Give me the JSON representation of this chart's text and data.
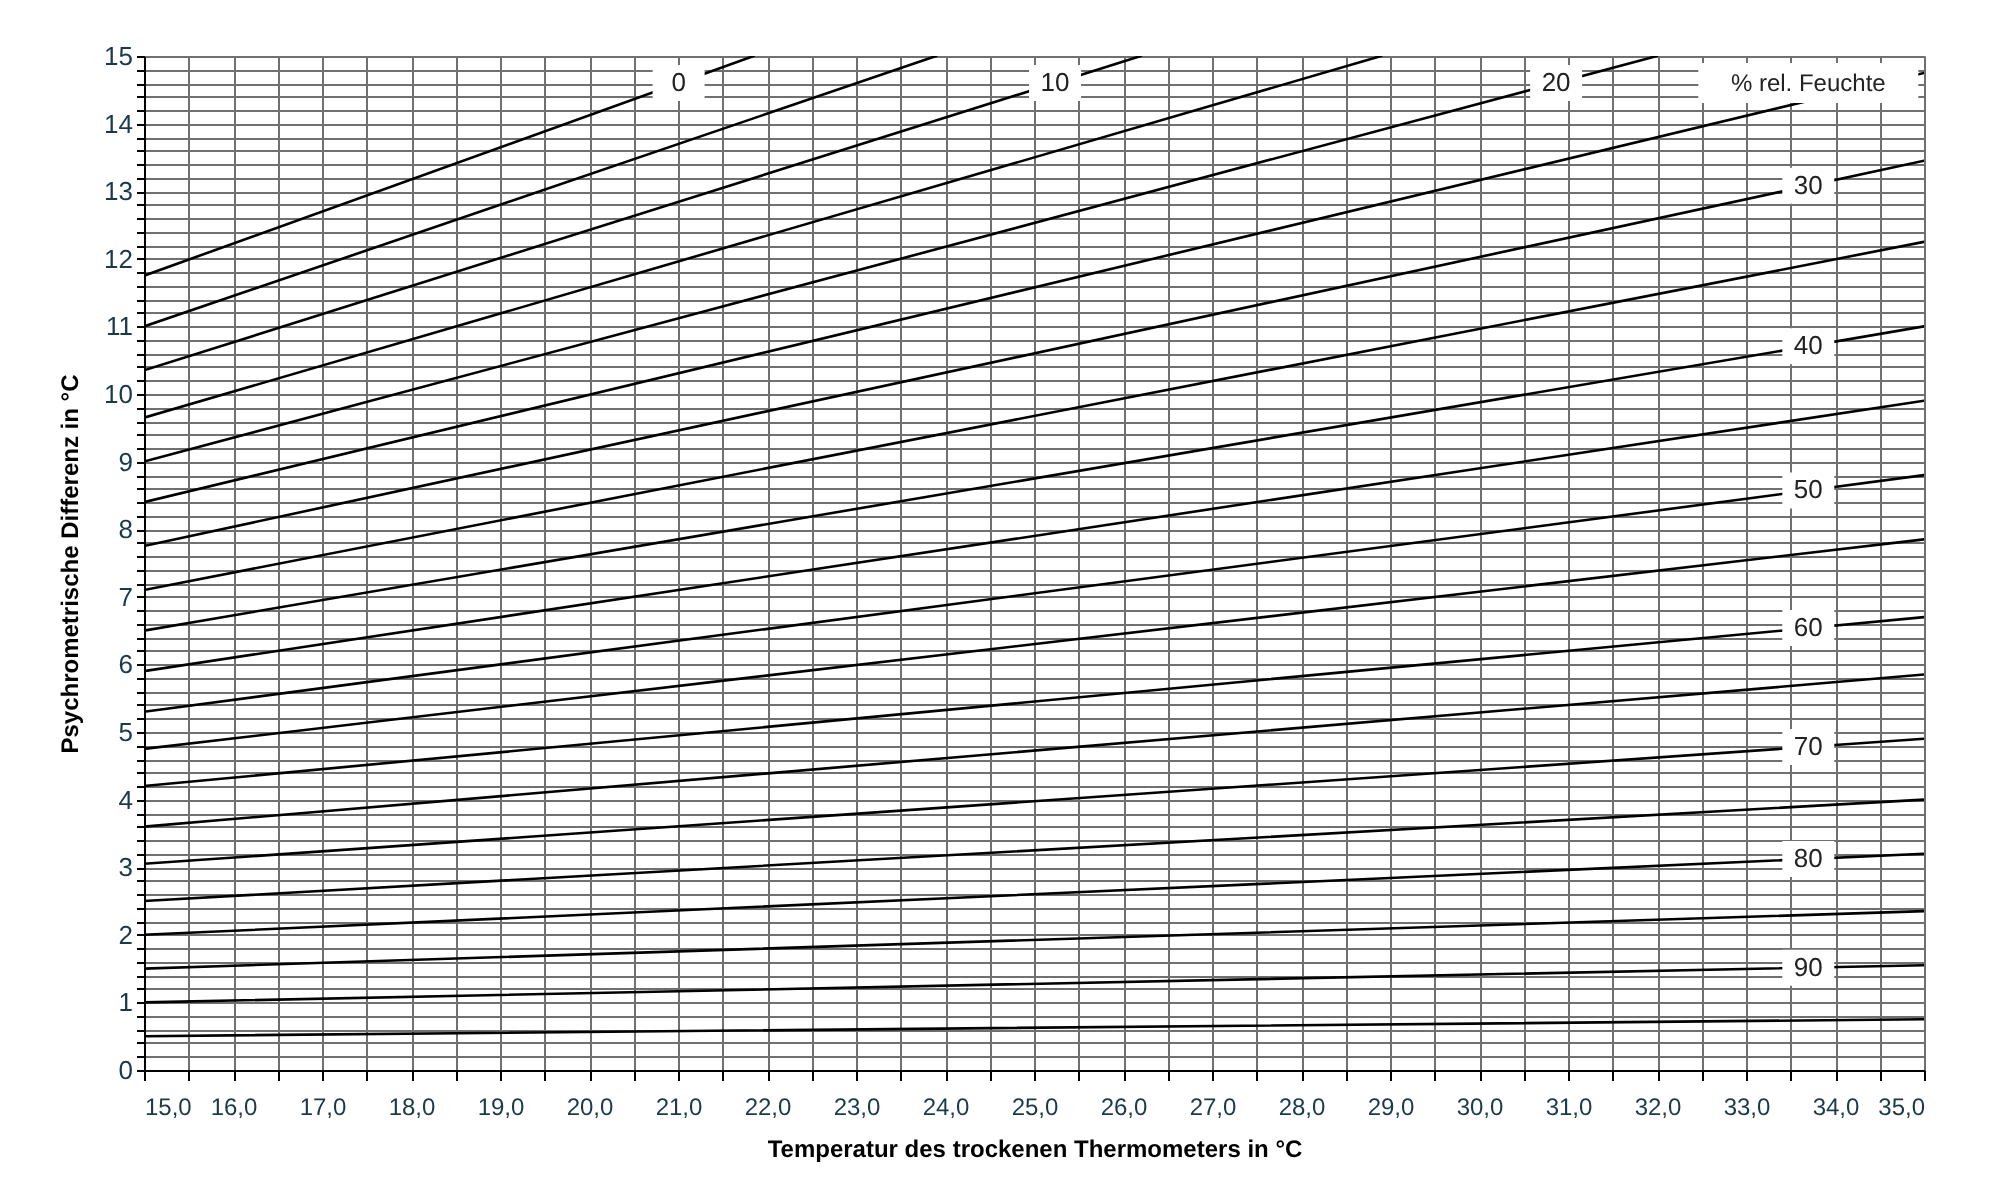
{
  "chart_data": {
    "type": "line",
    "xlabel": "Temperatur des trockenen Thermometers in °C",
    "ylabel": "Psychrometrische Differenz in °C",
    "annotations": [
      "% rel. Feuchte"
    ],
    "xlim": [
      15,
      35
    ],
    "ylim": [
      0,
      15
    ],
    "xticks": [
      {
        "value": 15,
        "label": "15,0"
      },
      {
        "value": 15.5,
        "label": null
      },
      {
        "value": 16,
        "label": "16,0"
      },
      {
        "value": 16.5,
        "label": null
      },
      {
        "value": 17,
        "label": "17,0"
      },
      {
        "value": 17.5,
        "label": null
      },
      {
        "value": 18,
        "label": "18,0"
      },
      {
        "value": 18.5,
        "label": null
      },
      {
        "value": 19,
        "label": "19,0"
      },
      {
        "value": 19.5,
        "label": null
      },
      {
        "value": 20,
        "label": "20,0"
      },
      {
        "value": 20.5,
        "label": null
      },
      {
        "value": 21,
        "label": "21,0"
      },
      {
        "value": 21.5,
        "label": null
      },
      {
        "value": 22,
        "label": "22,0"
      },
      {
        "value": 22.5,
        "label": null
      },
      {
        "value": 23,
        "label": "23,0"
      },
      {
        "value": 23.5,
        "label": null
      },
      {
        "value": 24,
        "label": "24,0"
      },
      {
        "value": 24.5,
        "label": null
      },
      {
        "value": 25,
        "label": "25,0"
      },
      {
        "value": 25.5,
        "label": null
      },
      {
        "value": 26,
        "label": "26,0"
      },
      {
        "value": 26.5,
        "label": null
      },
      {
        "value": 27,
        "label": "27,0"
      },
      {
        "value": 27.5,
        "label": null
      },
      {
        "value": 28,
        "label": "28,0"
      },
      {
        "value": 28.5,
        "label": null
      },
      {
        "value": 29,
        "label": "29,0"
      },
      {
        "value": 29.5,
        "label": null
      },
      {
        "value": 30,
        "label": "30,0"
      },
      {
        "value": 30.5,
        "label": null
      },
      {
        "value": 31,
        "label": "31,0"
      },
      {
        "value": 31.5,
        "label": null
      },
      {
        "value": 32,
        "label": "32,0"
      },
      {
        "value": 32.5,
        "label": null
      },
      {
        "value": 33,
        "label": "33,0"
      },
      {
        "value": 33.5,
        "label": null
      },
      {
        "value": 34,
        "label": "34,0"
      },
      {
        "value": 34.5,
        "label": null
      },
      {
        "value": 35,
        "label": "35,0"
      }
    ],
    "yticks": [
      0,
      {
        "value": 0.2,
        "label": null
      },
      {
        "value": 0.4,
        "label": null
      },
      {
        "value": 0.6,
        "label": null
      },
      {
        "value": 0.8,
        "label": null
      },
      1,
      {
        "value": 1.2,
        "label": null
      },
      {
        "value": 1.4,
        "label": null
      },
      {
        "value": 1.6,
        "label": null
      },
      {
        "value": 1.8,
        "label": null
      },
      2,
      {
        "value": 2.2,
        "label": null
      },
      {
        "value": 2.4,
        "label": null
      },
      {
        "value": 2.6,
        "label": null
      },
      {
        "value": 2.8,
        "label": null
      },
      3,
      {
        "value": 3.2,
        "label": null
      },
      {
        "value": 3.4,
        "label": null
      },
      {
        "value": 3.6,
        "label": null
      },
      {
        "value": 3.8,
        "label": null
      },
      4,
      {
        "value": 4.2,
        "label": null
      },
      {
        "value": 4.4,
        "label": null
      },
      {
        "value": 4.6,
        "label": null
      },
      {
        "value": 4.8,
        "label": null
      },
      5,
      {
        "value": 5.2,
        "label": null
      },
      {
        "value": 5.4,
        "label": null
      },
      {
        "value": 5.6,
        "label": null
      },
      {
        "value": 5.8,
        "label": null
      },
      6,
      {
        "value": 6.2,
        "label": null
      },
      {
        "value": 6.4,
        "label": null
      },
      {
        "value": 6.6,
        "label": null
      },
      {
        "value": 6.8,
        "label": null
      },
      7,
      {
        "value": 7.2,
        "label": null
      },
      {
        "value": 7.4,
        "label": null
      },
      {
        "value": 7.6,
        "label": null
      },
      {
        "value": 7.8,
        "label": null
      },
      8,
      {
        "value": 8.2,
        "label": null
      },
      {
        "value": 8.4,
        "label": null
      },
      {
        "value": 8.6,
        "label": null
      },
      {
        "value": 8.8,
        "label": null
      },
      9,
      {
        "value": 9.2,
        "label": null
      },
      {
        "value": 9.4,
        "label": null
      },
      {
        "value": 9.6,
        "label": null
      },
      {
        "value": 9.8,
        "label": null
      },
      10,
      {
        "value": 10.2,
        "label": null
      },
      {
        "value": 10.4,
        "label": null
      },
      {
        "value": 10.6,
        "label": null
      },
      {
        "value": 10.8,
        "label": null
      },
      11,
      {
        "value": 11.2,
        "label": null
      },
      {
        "value": 11.4,
        "label": null
      },
      {
        "value": 11.6,
        "label": null
      },
      {
        "value": 11.8,
        "label": null
      },
      12,
      {
        "value": 12.2,
        "label": null
      },
      {
        "value": 12.4,
        "label": null
      },
      {
        "value": 12.6,
        "label": null
      },
      {
        "value": 12.8,
        "label": null
      },
      13,
      {
        "value": 13.2,
        "label": null
      },
      {
        "value": 13.4,
        "label": null
      },
      {
        "value": 13.6,
        "label": null
      },
      {
        "value": 13.8,
        "label": null
      },
      14,
      {
        "value": 14.2,
        "label": null
      },
      {
        "value": 14.4,
        "label": null
      },
      {
        "value": 14.6,
        "label": null
      },
      {
        "value": 14.8,
        "label": null
      },
      15
    ],
    "grid": true,
    "marker": "none",
    "line_style": "solid",
    "series": [
      {
        "name": "0",
        "color": "#000000",
        "x": [
          15,
          21.85
        ],
        "values": [
          11.75,
          15
        ]
      },
      {
        "color": "#000000",
        "x": [
          15,
          23.9
        ],
        "values": [
          11.0,
          15
        ]
      },
      {
        "name": "10",
        "color": "#000000",
        "x": [
          15,
          26.2
        ],
        "values": [
          10.35,
          15
        ]
      },
      {
        "color": "#000000",
        "x": [
          15,
          28.9
        ],
        "values": [
          9.65,
          15
        ]
      },
      {
        "name": "20",
        "color": "#000000",
        "x": [
          15,
          32.0
        ],
        "values": [
          9.0,
          15
        ]
      },
      {
        "color": "#000000",
        "x": [
          15,
          35
        ],
        "values": [
          8.4,
          14.75
        ]
      },
      {
        "name": "30",
        "color": "#000000",
        "x": [
          15,
          35
        ],
        "values": [
          7.75,
          13.45
        ]
      },
      {
        "color": "#000000",
        "x": [
          15,
          35
        ],
        "values": [
          7.1,
          12.25
        ]
      },
      {
        "name": "40",
        "color": "#000000",
        "x": [
          15,
          35
        ],
        "values": [
          6.5,
          11.0
        ]
      },
      {
        "color": "#000000",
        "x": [
          15,
          35
        ],
        "values": [
          5.9,
          9.9
        ]
      },
      {
        "name": "50",
        "color": "#000000",
        "x": [
          15,
          35
        ],
        "values": [
          5.3,
          8.8
        ]
      },
      {
        "color": "#000000",
        "x": [
          15,
          35
        ],
        "values": [
          4.75,
          7.85
        ]
      },
      {
        "name": "60",
        "color": "#000000",
        "x": [
          15,
          35
        ],
        "values": [
          4.2,
          6.7
        ]
      },
      {
        "color": "#000000",
        "x": [
          15,
          35
        ],
        "values": [
          3.6,
          5.85
        ]
      },
      {
        "name": "70",
        "color": "#000000",
        "x": [
          15,
          35
        ],
        "values": [
          3.05,
          4.9
        ]
      },
      {
        "color": "#000000",
        "x": [
          15,
          35
        ],
        "values": [
          2.5,
          4.0
        ]
      },
      {
        "name": "80",
        "color": "#000000",
        "x": [
          15,
          35
        ],
        "values": [
          2.0,
          3.2
        ]
      },
      {
        "color": "#000000",
        "x": [
          15,
          35
        ],
        "values": [
          1.5,
          2.35
        ]
      },
      {
        "name": "90",
        "color": "#000000",
        "x": [
          15,
          35
        ],
        "values": [
          1.0,
          1.55
        ]
      },
      {
        "color": "#000000",
        "x": [
          15,
          35
        ],
        "values": [
          0.5,
          0.75
        ]
      }
    ]
  }
}
